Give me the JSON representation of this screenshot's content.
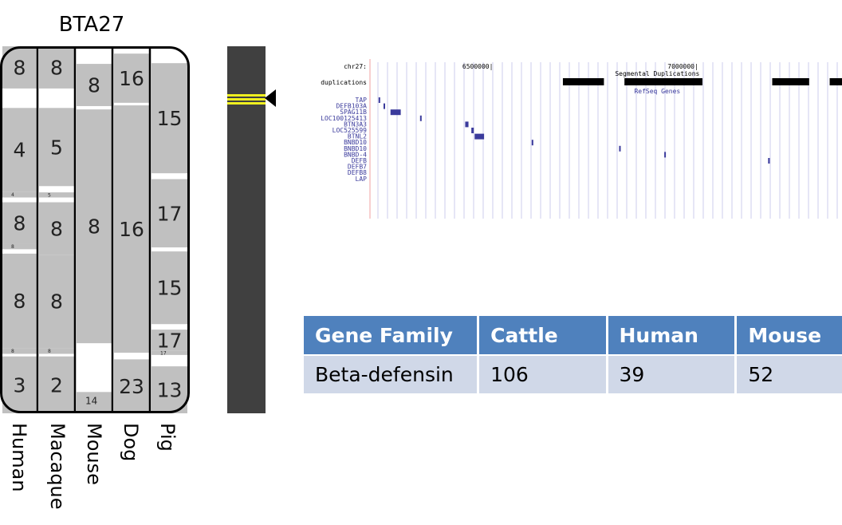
{
  "title": "BTA27",
  "species": [
    "Human",
    "Macaque",
    "Mouse",
    "Dog",
    "Pig"
  ],
  "synteny": {
    "columns": [
      {
        "species": "Human",
        "segments": [
          {
            "label": "8",
            "from": 0,
            "to": 0.115
          },
          {
            "label": "4",
            "from": 0.168,
            "to": 0.396
          },
          {
            "label": "4",
            "from": 0.396,
            "to": 0.412,
            "small": true
          },
          {
            "label": "8",
            "from": 0.425,
            "to": 0.538
          },
          {
            "label": "8",
            "from": 0.538,
            "to": 0.553,
            "small": true
          },
          {
            "label": "8",
            "from": 0.565,
            "to": 0.822
          },
          {
            "label": "8",
            "from": 0.822,
            "to": 0.838,
            "small": true
          },
          {
            "label": "3",
            "from": 0.845,
            "to": 1
          }
        ]
      },
      {
        "species": "Macaque",
        "segments": [
          {
            "label": "8",
            "from": 0,
            "to": 0.115
          },
          {
            "label": "5",
            "from": 0.168,
            "to": 0.381
          },
          {
            "label": "5",
            "from": 0.398,
            "to": 0.412,
            "small": true
          },
          {
            "label": "8",
            "from": 0.425,
            "to": 0.568
          },
          {
            "label": "8",
            "from": 0.568,
            "to": 0.822
          },
          {
            "label": "8",
            "from": 0.822,
            "to": 0.838,
            "small": true
          },
          {
            "label": "2",
            "from": 0.845,
            "to": 1
          }
        ]
      },
      {
        "species": "Mouse",
        "segments": [
          {
            "label": "8",
            "from": 0.048,
            "to": 0.163
          },
          {
            "label": "8",
            "from": 0.172,
            "to": 0.809
          },
          {
            "label": "14",
            "from": 0.942,
            "to": 1,
            "small": true
          }
        ]
      },
      {
        "species": "Dog",
        "segments": [
          {
            "label": "16",
            "from": 0.02,
            "to": 0.154
          },
          {
            "label": "16",
            "from": 0.161,
            "to": 0.835
          },
          {
            "label": "23",
            "from": 0.853,
            "to": 1
          }
        ]
      },
      {
        "species": "Pig",
        "segments": [
          {
            "label": "15",
            "from": 0.046,
            "to": 0.346
          },
          {
            "label": "17",
            "from": 0.362,
            "to": 0.548
          },
          {
            "label": "15",
            "from": 0.559,
            "to": 0.757
          },
          {
            "label": "17",
            "from": 0.772,
            "to": 0.83
          },
          {
            "label": "17",
            "from": 0.83,
            "to": 0.841,
            "small": true
          },
          {
            "label": "13",
            "from": 0.872,
            "to": 1
          }
        ]
      }
    ]
  },
  "browser": {
    "position_label": "chr27:",
    "ticks": [
      {
        "pos": 6500000,
        "label": "6500000|"
      },
      {
        "pos": 7000000,
        "label": "7000000|"
      }
    ],
    "view_start": 6200000,
    "view_end": 7350000,
    "dup_track_label": "duplications",
    "seg_dup_title": "Segmental Duplications",
    "refseq_title": "RefSeq Genes",
    "duplications": [
      [
        6670000,
        6770000
      ],
      [
        6820000,
        7010000
      ],
      [
        7180000,
        7270000
      ],
      [
        7320000,
        7490000
      ]
    ],
    "genes": [
      {
        "name": "TAP",
        "start": 6221000,
        "end": 6223000
      },
      {
        "name": "DEFB103A",
        "start": 6233000,
        "end": 6235000
      },
      {
        "name": "SPAG11B",
        "start": 6250000,
        "end": 6275000
      },
      {
        "name": "LOC100125413",
        "start": 6322000,
        "end": 6324000
      },
      {
        "name": "BTN3A3",
        "start": 6432000,
        "end": 6440000
      },
      {
        "name": "LOC525599",
        "start": 6447000,
        "end": 6453000
      },
      {
        "name": "BTNL2",
        "start": 6455000,
        "end": 6478000
      },
      {
        "name": "BNBD10",
        "start": 6594000,
        "end": 6596000
      },
      {
        "name": "BNBD10",
        "start": 6807000,
        "end": 6809000
      },
      {
        "name": "BNBD-4",
        "start": 6917000,
        "end": 6919000
      },
      {
        "name": "DEFB",
        "start": 7170000,
        "end": 7174000
      },
      {
        "name": "DEFB7",
        "start": null,
        "end": null
      },
      {
        "name": "DEFB8",
        "start": null,
        "end": null
      },
      {
        "name": "LAP",
        "start": null,
        "end": null
      }
    ]
  },
  "table": {
    "headers": [
      "Gene Family",
      "Cattle",
      "Human",
      "Mouse"
    ],
    "rows": [
      [
        "Beta-defensin",
        "106",
        "39",
        "52"
      ]
    ]
  },
  "colors": {
    "segment": "#c0c0c0",
    "chrom_bar": "#404040",
    "highlight": "#f0f020",
    "table_header": "#4f81bd",
    "table_row": "#d0d8e8",
    "gene": "#3b3b9c"
  }
}
